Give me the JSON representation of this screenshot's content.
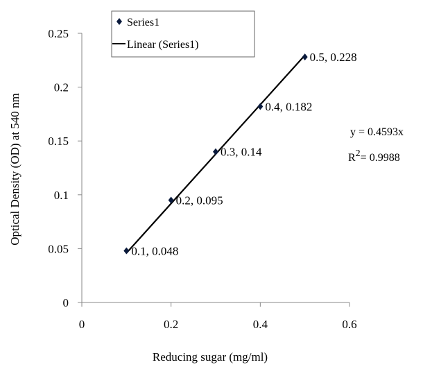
{
  "chart_data": {
    "type": "scatter",
    "xlabel": "Reducing sugar (mg/ml)",
    "ylabel": "Optical Density (OD) at 540 nm",
    "xlim": [
      0,
      0.6
    ],
    "ylim": [
      0,
      0.25
    ],
    "xticks": [
      0,
      0.2,
      0.4,
      0.6
    ],
    "yticks": [
      0,
      0.05,
      0.1,
      0.15,
      0.2,
      0.25
    ],
    "xtick_labels": [
      "0",
      "0.2",
      "0.4",
      "0.6"
    ],
    "ytick_labels": [
      "0",
      "0.05",
      "0.1",
      "0.15",
      "0.2",
      "0.25"
    ],
    "grid": false,
    "legend_position": "top-left",
    "series": [
      {
        "name": "Series1",
        "marker": "diamond",
        "color": "#0a1a3c",
        "x": [
          0.1,
          0.2,
          0.3,
          0.4,
          0.5
        ],
        "y": [
          0.048,
          0.095,
          0.14,
          0.182,
          0.228
        ],
        "data_labels": [
          "0.1, 0.048",
          "0.2, 0.095",
          "0.3, 0.14",
          "0.4, 0.182",
          "0.5, 0.228"
        ]
      }
    ],
    "trendline": {
      "name": "Linear (Series1)",
      "type": "linear",
      "x_range": [
        0.1,
        0.5
      ],
      "slope": 0.4593,
      "intercept": 0,
      "color": "#000000"
    },
    "equation_text": "y = 0.4593x",
    "r2_prefix": "R",
    "r2_sup": "2",
    "r2_value": "= 0.9988"
  }
}
